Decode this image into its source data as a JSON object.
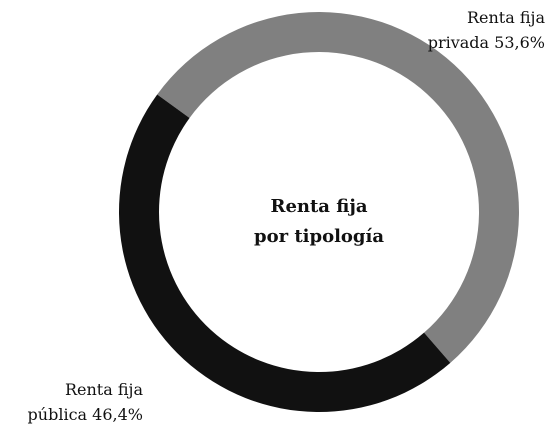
{
  "chart_data": {
    "type": "donut",
    "title": "Renta fija\npor tipología",
    "categories": [
      "Renta fija\nprivada",
      "Renta fija\npública"
    ],
    "values": [
      53.6,
      46.4
    ],
    "value_labels": [
      "53,6%",
      "46,4%"
    ],
    "colors": [
      "#808080",
      "#111111"
    ]
  }
}
